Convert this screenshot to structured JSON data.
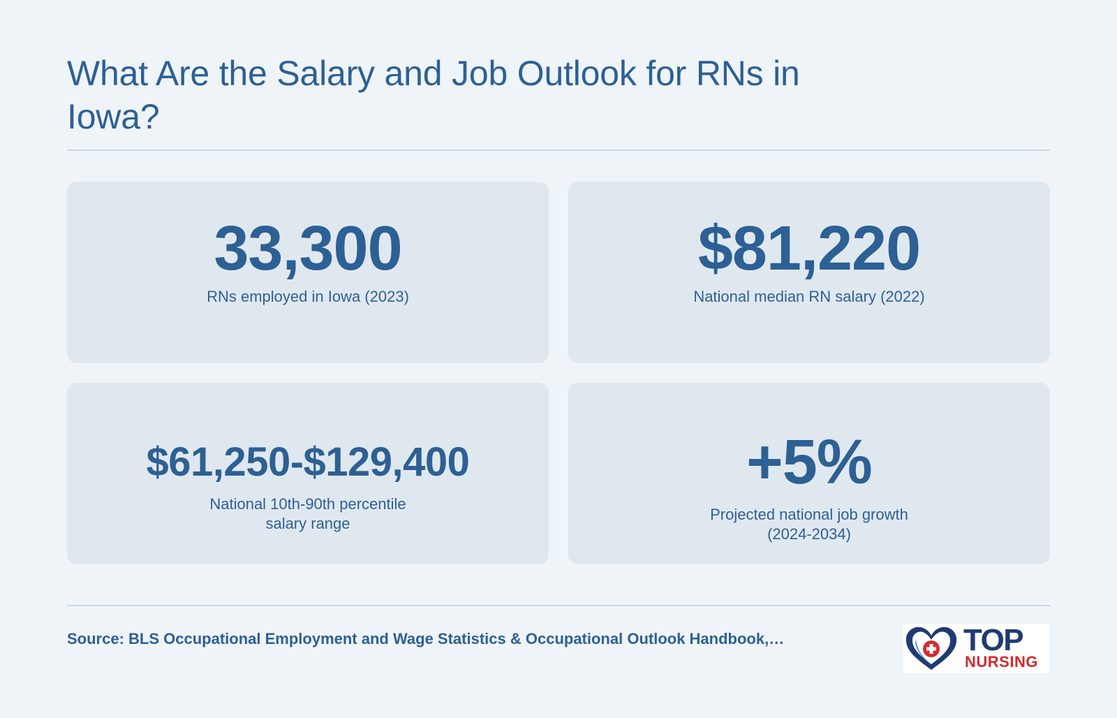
{
  "header": {
    "title": "What Are the Salary and Job Outlook for RNs in Iowa?"
  },
  "stats": [
    {
      "value": "33,300",
      "label": "RNs employed in Iowa (2023)"
    },
    {
      "value": "$81,220",
      "label": "National median RN salary (2022)"
    },
    {
      "value": "$61,250-$129,400",
      "label": "National 10th-90th percentile salary range"
    },
    {
      "value": "+5%",
      "label": "Projected national job growth (2024-2034)"
    }
  ],
  "footer": {
    "source": "Source: BLS Occupational Employment and Wage Statistics & Occupational Outlook Handbook,…",
    "logo_top": "TOP",
    "logo_bottom": "NURSING"
  },
  "colors": {
    "background": "#eff4f8",
    "card": "#e0e8ef",
    "text": "#2d6094",
    "logo_navy": "#1f3b73",
    "logo_red": "#d42a2f"
  }
}
